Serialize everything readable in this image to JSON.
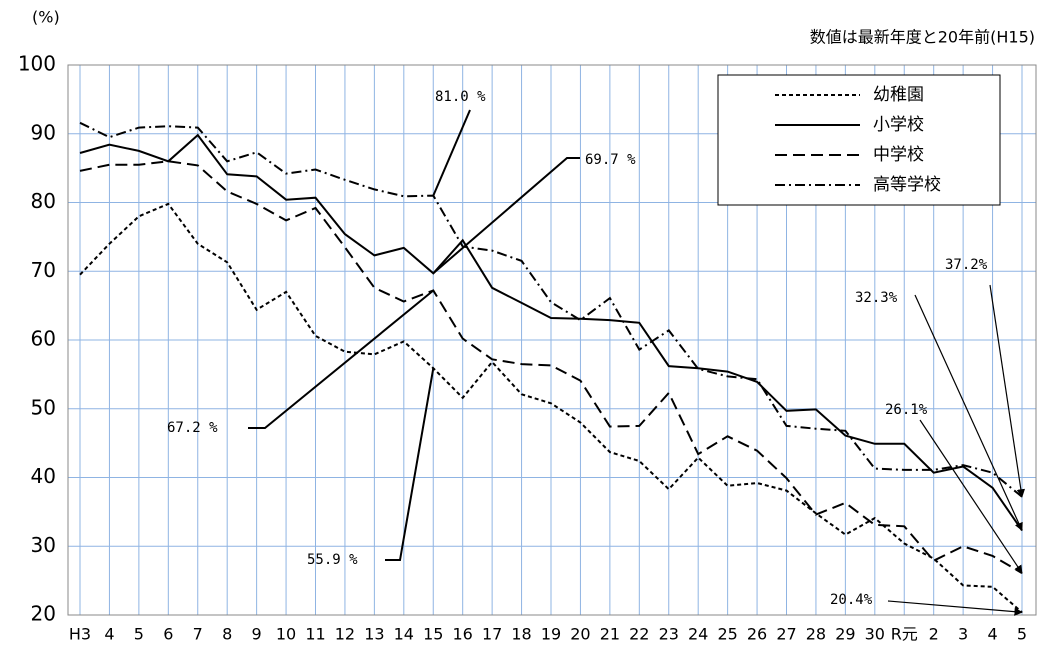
{
  "chart_data": {
    "type": "line",
    "unit_label": "(%)",
    "note": "数値は最新年度と20年前(H15)",
    "categories": [
      "H3",
      "4",
      "5",
      "6",
      "7",
      "8",
      "9",
      "10",
      "11",
      "12",
      "13",
      "14",
      "15",
      "16",
      "17",
      "18",
      "19",
      "20",
      "21",
      "22",
      "23",
      "24",
      "25",
      "26",
      "27",
      "28",
      "29",
      "30",
      "R元",
      "2",
      "3",
      "4",
      "5"
    ],
    "ylim": [
      20,
      100
    ],
    "yticks": [
      20,
      30,
      40,
      50,
      60,
      70,
      80,
      90,
      100
    ],
    "grid": true,
    "series": [
      {
        "name": "幼稚園",
        "color": "#000000",
        "dash": "4,3",
        "values": [
          69.5,
          74,
          78,
          79.8,
          74,
          71.3,
          64.4,
          67,
          60.6,
          58.3,
          57.9,
          59.8,
          55.9,
          51.6,
          56.8,
          52.1,
          50.8,
          48,
          43.7,
          42.4,
          38.3,
          42.9,
          38.8,
          39.2,
          38.1,
          34.8,
          31.7,
          34.1,
          30.4,
          28.2,
          24.3,
          24.1,
          20.4
        ]
      },
      {
        "name": "小学校",
        "color": "#000000",
        "dash": "none",
        "values": [
          87.2,
          88.4,
          87.5,
          86,
          89.8,
          84.1,
          83.8,
          80.4,
          80.7,
          75.4,
          72.3,
          73.4,
          69.7,
          74.5,
          67.6,
          65.4,
          63.2,
          63.1,
          62.9,
          62.5,
          56.2,
          55.9,
          55.4,
          53.9,
          49.7,
          49.9,
          46.1,
          44.9,
          44.9,
          40.7,
          41.6,
          38.5,
          32.3
        ]
      },
      {
        "name": "中学校",
        "color": "#000000",
        "dash": "12,6",
        "values": [
          84.6,
          85.5,
          85.5,
          86,
          85.4,
          81.6,
          79.8,
          77.4,
          79.2,
          73.5,
          67.6,
          65.6,
          67.2,
          60.2,
          57.2,
          56.5,
          56.3,
          54.1,
          47.4,
          47.5,
          52.3,
          43.4,
          46,
          43.9,
          39.9,
          34.6,
          36.3,
          33.1,
          32.9,
          27.9,
          30,
          28.6,
          26.1
        ]
      },
      {
        "name": "高等学校",
        "color": "#000000",
        "dash": "10,4,2,4",
        "values": [
          91.6,
          89.5,
          90.9,
          91.1,
          90.9,
          86,
          87.3,
          84.2,
          84.8,
          83.3,
          81.9,
          80.9,
          81,
          73.6,
          73,
          71.5,
          65.5,
          62.9,
          66.1,
          58.6,
          61.4,
          55.8,
          54.7,
          54.3,
          47.5,
          47.1,
          46.8,
          41.3,
          41.1,
          41.1,
          41.8,
          40.7,
          37.2
        ]
      }
    ],
    "annotations": [
      "81.0 %",
      "69.7 %",
      "67.2 %",
      "55.9 %",
      "37.2%",
      "32.3%",
      "26.1%",
      "20.4%"
    ]
  }
}
